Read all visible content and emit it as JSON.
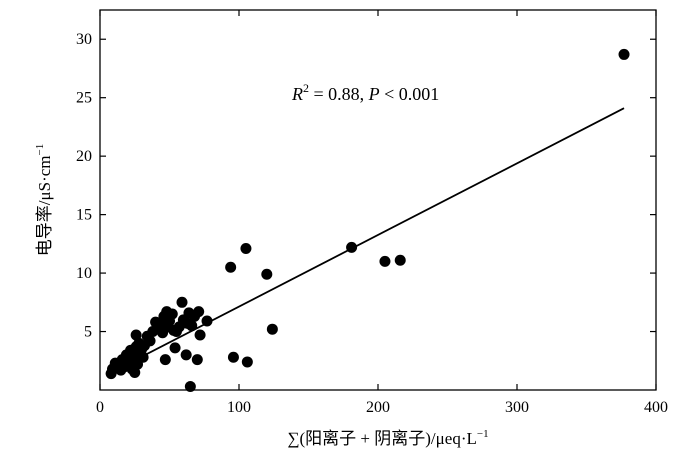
{
  "chart_data": {
    "type": "scatter",
    "title": "",
    "xlabel": "∑(阳离子 + 阴离子)/μeq·L",
    "xlabel_sup": "−1",
    "ylabel": "电导率/μS·cm",
    "ylabel_sup": "−1",
    "xlim": [
      0,
      400
    ],
    "ylim": [
      0,
      32.5
    ],
    "xticks": [
      0,
      100,
      200,
      300,
      400
    ],
    "yticks": [
      5,
      10,
      15,
      20,
      25,
      30
    ],
    "grid": false,
    "annotation": {
      "r2_prefix": "R",
      "r2_sup": "2",
      "r2_value": " = 0.88, ",
      "p_prefix": "P",
      "p_value": " < 0.001"
    },
    "fit_line": {
      "x": [
        8,
        377
      ],
      "y": [
        1.5,
        24.1
      ]
    },
    "points": [
      [
        8,
        1.4
      ],
      [
        9,
        1.8
      ],
      [
        11,
        2.3
      ],
      [
        14,
        2.1
      ],
      [
        15,
        1.7
      ],
      [
        16,
        2.6
      ],
      [
        18,
        2.0
      ],
      [
        19,
        3.0
      ],
      [
        21,
        2.4
      ],
      [
        22,
        3.4
      ],
      [
        23,
        1.8
      ],
      [
        24,
        2.9
      ],
      [
        25,
        1.5
      ],
      [
        26,
        3.7
      ],
      [
        26,
        4.7
      ],
      [
        27,
        2.2
      ],
      [
        28,
        4.0
      ],
      [
        29,
        3.1
      ],
      [
        30,
        3.5
      ],
      [
        31,
        2.8
      ],
      [
        32,
        3.8
      ],
      [
        34,
        4.6
      ],
      [
        36,
        4.2
      ],
      [
        38,
        5.0
      ],
      [
        40,
        5.8
      ],
      [
        42,
        5.3
      ],
      [
        44,
        5.6
      ],
      [
        45,
        4.9
      ],
      [
        46,
        6.3
      ],
      [
        47,
        2.6
      ],
      [
        48,
        6.7
      ],
      [
        49,
        5.4
      ],
      [
        50,
        5.9
      ],
      [
        52,
        6.5
      ],
      [
        53,
        5.1
      ],
      [
        54,
        3.6
      ],
      [
        55,
        5.0
      ],
      [
        57,
        5.4
      ],
      [
        59,
        7.5
      ],
      [
        60,
        6.0
      ],
      [
        62,
        3.0
      ],
      [
        63,
        5.7
      ],
      [
        64,
        6.6
      ],
      [
        65,
        0.3
      ],
      [
        66,
        5.5
      ],
      [
        68,
        6.3
      ],
      [
        70,
        2.6
      ],
      [
        71,
        6.7
      ],
      [
        72,
        4.7
      ],
      [
        77,
        5.9
      ],
      [
        94,
        10.5
      ],
      [
        96,
        2.8
      ],
      [
        105,
        12.1
      ],
      [
        106,
        2.4
      ],
      [
        120,
        9.9
      ],
      [
        124,
        5.2
      ],
      [
        181,
        12.2
      ],
      [
        205,
        11.0
      ],
      [
        216,
        11.1
      ],
      [
        377,
        28.7
      ]
    ]
  }
}
